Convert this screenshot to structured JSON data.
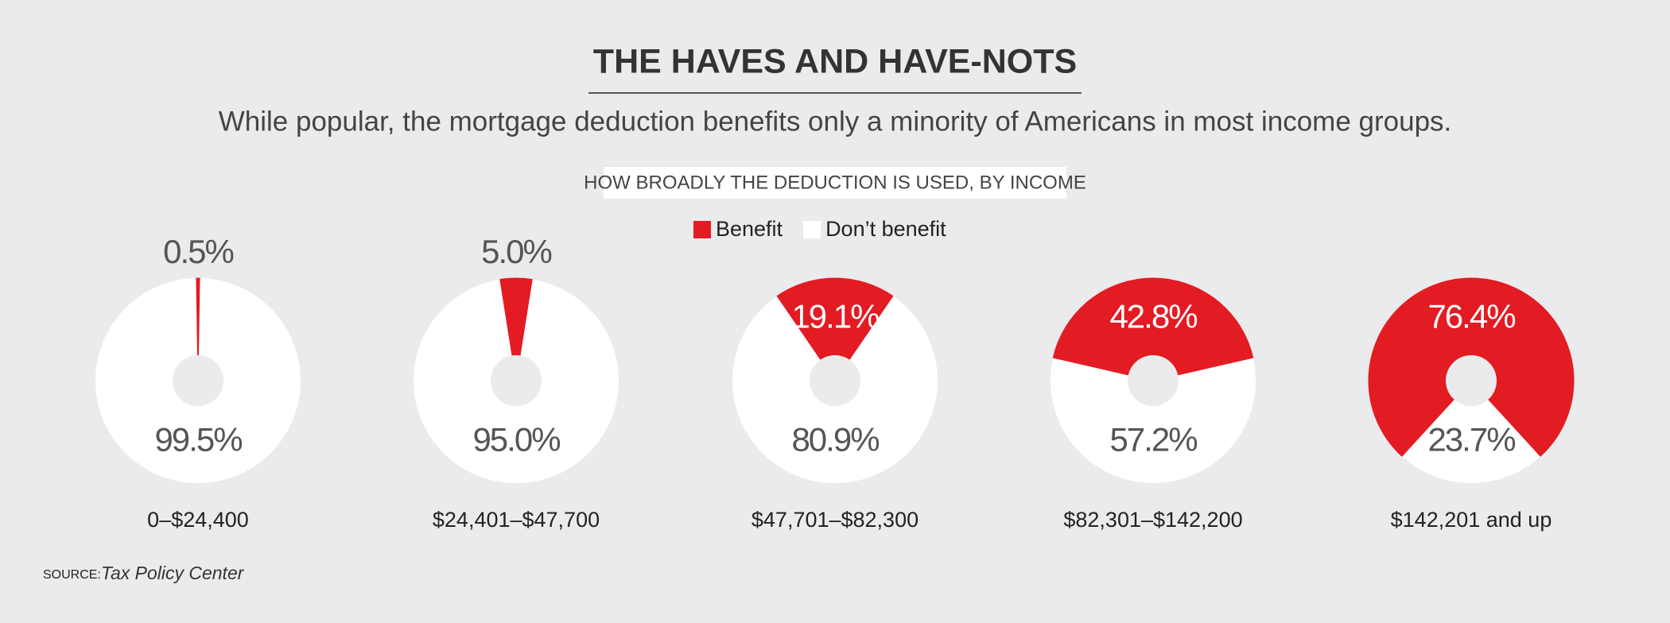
{
  "chart_data": {
    "type": "donut",
    "title": "THE HAVES AND HAVE-NOTS",
    "subtitle": "While popular, the mortgage deduction benefits only a minority of Americans in most income groups.",
    "chart_label": "HOW BROADLY THE DEDUCTION IS USED, BY INCOME",
    "categories": [
      "0–$24,400",
      "$24,401–$47,700",
      "$47,701–$82,300",
      "$82,301–$142,200",
      "$142,201 and up"
    ],
    "series": [
      {
        "name": "Benefit",
        "color": "#e31b23",
        "values": [
          0.5,
          5,
          19.1,
          42.8,
          76.4
        ],
        "value_labels": [
          "0.5%",
          "5.0%",
          "19.1%",
          "42.8%",
          "76.4%"
        ]
      },
      {
        "name": "Don’t benefit",
        "color": "#ffffff",
        "values": [
          99.5,
          95,
          80.9,
          57.2,
          23.7
        ],
        "value_labels": [
          "99.5%",
          "95.0%",
          "80.9%",
          "57.2%",
          "23.7%"
        ]
      }
    ],
    "source_label": "SOURCE:",
    "source": "Tax Policy Center"
  }
}
